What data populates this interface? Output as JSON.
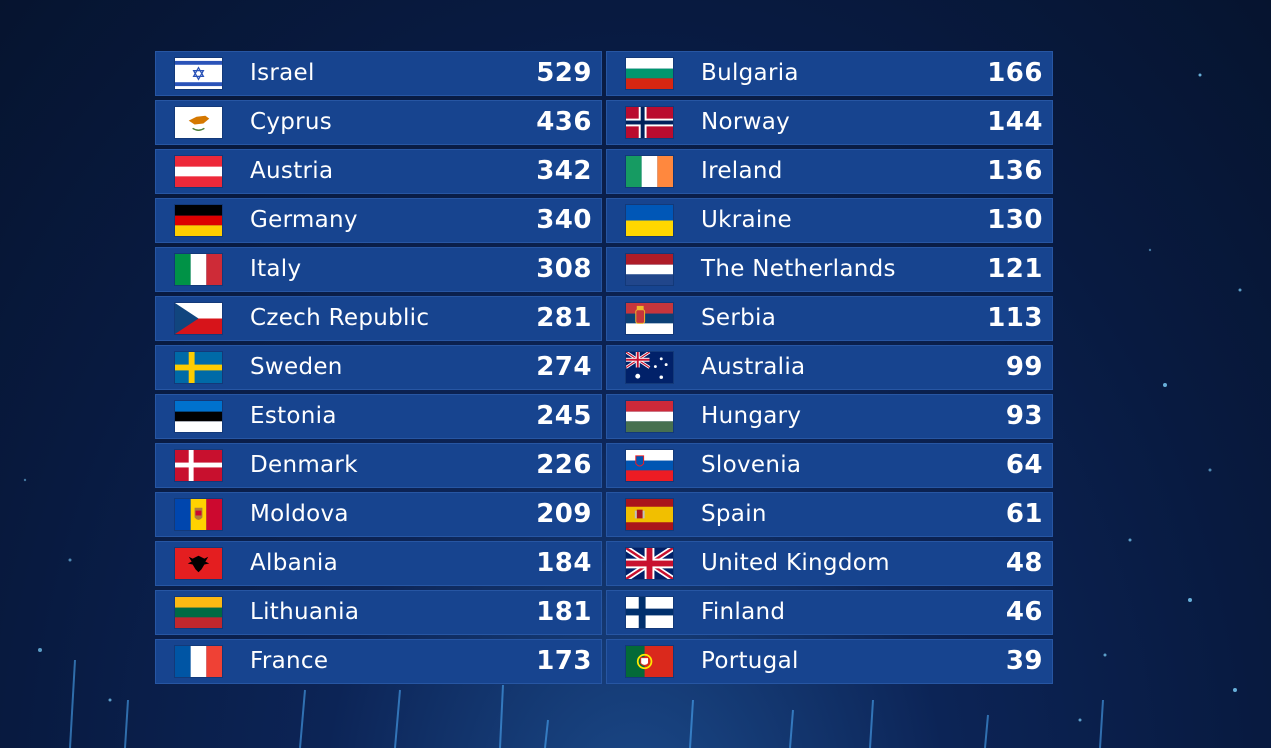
{
  "scoreboard": {
    "rows": [
      {
        "country": "Israel",
        "points": "529",
        "flag": "israel-flag-icon"
      },
      {
        "country": "Bulgaria",
        "points": "166",
        "flag": "bulgaria-flag-icon"
      },
      {
        "country": "Cyprus",
        "points": "436",
        "flag": "cyprus-flag-icon"
      },
      {
        "country": "Norway",
        "points": "144",
        "flag": "norway-flag-icon"
      },
      {
        "country": "Austria",
        "points": "342",
        "flag": "austria-flag-icon"
      },
      {
        "country": "Ireland",
        "points": "136",
        "flag": "ireland-flag-icon"
      },
      {
        "country": "Germany",
        "points": "340",
        "flag": "germany-flag-icon"
      },
      {
        "country": "Ukraine",
        "points": "130",
        "flag": "ukraine-flag-icon"
      },
      {
        "country": "Italy",
        "points": "308",
        "flag": "italy-flag-icon"
      },
      {
        "country": "The Netherlands",
        "points": "121",
        "flag": "netherlands-flag-icon"
      },
      {
        "country": "Czech Republic",
        "points": "281",
        "flag": "czech-flag-icon"
      },
      {
        "country": "Serbia",
        "points": "113",
        "flag": "serbia-flag-icon"
      },
      {
        "country": "Sweden",
        "points": "274",
        "flag": "sweden-flag-icon"
      },
      {
        "country": "Australia",
        "points": "99",
        "flag": "australia-flag-icon"
      },
      {
        "country": "Estonia",
        "points": "245",
        "flag": "estonia-flag-icon"
      },
      {
        "country": "Hungary",
        "points": "93",
        "flag": "hungary-flag-icon"
      },
      {
        "country": "Denmark",
        "points": "226",
        "flag": "denmark-flag-icon"
      },
      {
        "country": "Slovenia",
        "points": "64",
        "flag": "slovenia-flag-icon"
      },
      {
        "country": "Moldova",
        "points": "209",
        "flag": "moldova-flag-icon"
      },
      {
        "country": "Spain",
        "points": "61",
        "flag": "spain-flag-icon"
      },
      {
        "country": "Albania",
        "points": "184",
        "flag": "albania-flag-icon"
      },
      {
        "country": "United Kingdom",
        "points": "48",
        "flag": "uk-flag-icon"
      },
      {
        "country": "Lithuania",
        "points": "181",
        "flag": "lithuania-flag-icon"
      },
      {
        "country": "Finland",
        "points": "46",
        "flag": "finland-flag-icon"
      },
      {
        "country": "France",
        "points": "173",
        "flag": "france-flag-icon"
      },
      {
        "country": "Portugal",
        "points": "39",
        "flag": "portugal-flag-icon"
      }
    ]
  },
  "colors": {
    "row_bg": "#17448f",
    "background": "#081a40",
    "text": "#ffffff"
  }
}
